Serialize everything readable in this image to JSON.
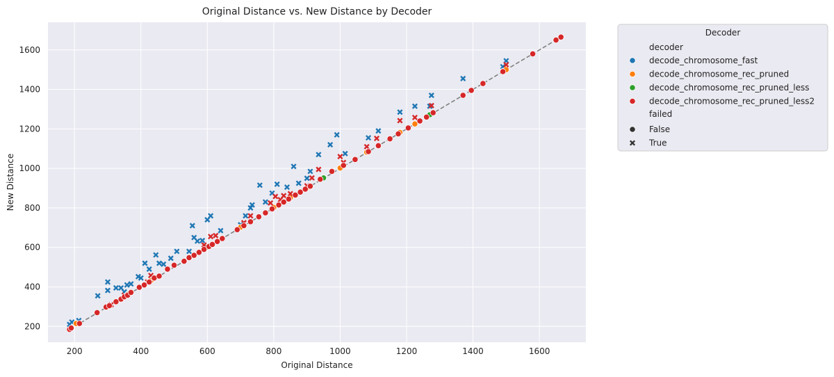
{
  "chart_data": {
    "type": "scatter",
    "title": "Original Distance vs. New Distance by Decoder",
    "xlabel": "Original Distance",
    "ylabel": "New Distance",
    "xlim": [
      120,
      1740
    ],
    "ylim": [
      120,
      1740
    ],
    "xticks": [
      200,
      400,
      600,
      800,
      1000,
      1200,
      1400,
      1600
    ],
    "yticks": [
      200,
      400,
      600,
      800,
      1000,
      1200,
      1400,
      1600
    ],
    "grid": true,
    "reference_line": {
      "x": [
        185,
        1665
      ],
      "y": [
        185,
        1665
      ],
      "style": "dashed",
      "color": "#808080"
    },
    "legend": {
      "title": "Decoder",
      "placement": "outside-right",
      "hue_heading": "decoder",
      "style_heading": "failed",
      "style_entries": [
        {
          "label": "False",
          "marker": "circle"
        },
        {
          "label": "True",
          "marker": "x"
        }
      ]
    },
    "series": [
      {
        "name": "decode_chromosome_fast",
        "color": "#1f77b4",
        "failed_points": [
          [
            185,
            210
          ],
          [
            192,
            222
          ],
          [
            213,
            230
          ],
          [
            270,
            355
          ],
          [
            300,
            382
          ],
          [
            300,
            425
          ],
          [
            325,
            395
          ],
          [
            340,
            395
          ],
          [
            350,
            375
          ],
          [
            358,
            410
          ],
          [
            370,
            415
          ],
          [
            392,
            452
          ],
          [
            400,
            445
          ],
          [
            412,
            520
          ],
          [
            425,
            490
          ],
          [
            445,
            562
          ],
          [
            455,
            520
          ],
          [
            468,
            515
          ],
          [
            490,
            545
          ],
          [
            508,
            580
          ],
          [
            545,
            580
          ],
          [
            555,
            710
          ],
          [
            560,
            650
          ],
          [
            570,
            632
          ],
          [
            585,
            635
          ],
          [
            600,
            740
          ],
          [
            610,
            760
          ],
          [
            640,
            685
          ],
          [
            700,
            715
          ],
          [
            715,
            760
          ],
          [
            730,
            800
          ],
          [
            735,
            815
          ],
          [
            758,
            915
          ],
          [
            775,
            830
          ],
          [
            795,
            875
          ],
          [
            810,
            920
          ],
          [
            840,
            905
          ],
          [
            860,
            1010
          ],
          [
            875,
            925
          ],
          [
            900,
            950
          ],
          [
            910,
            985
          ],
          [
            935,
            1070
          ],
          [
            970,
            1120
          ],
          [
            990,
            1170
          ],
          [
            1015,
            1075
          ],
          [
            1085,
            1155
          ],
          [
            1115,
            1190
          ],
          [
            1180,
            1285
          ],
          [
            1225,
            1315
          ],
          [
            1270,
            1315
          ],
          [
            1275,
            1370
          ],
          [
            1370,
            1455
          ],
          [
            1490,
            1515
          ],
          [
            1500,
            1545
          ]
        ],
        "passed_points": []
      },
      {
        "name": "decode_chromosome_rec_pruned",
        "color": "#ff7f0e",
        "failed_points": [],
        "passed_points": [
          [
            205,
            215
          ],
          [
            300,
            300
          ],
          [
            350,
            352
          ],
          [
            430,
            432
          ],
          [
            560,
            560
          ],
          [
            700,
            702
          ],
          [
            800,
            802
          ],
          [
            850,
            852
          ],
          [
            900,
            902
          ],
          [
            1000,
            1002
          ],
          [
            1080,
            1082
          ],
          [
            1180,
            1182
          ],
          [
            1225,
            1225
          ],
          [
            1490,
            1492
          ],
          [
            1500,
            1500
          ]
        ]
      },
      {
        "name": "decode_chromosome_rec_pruned_less",
        "color": "#2ca02c",
        "failed_points": [],
        "passed_points": [
          [
            360,
            362
          ],
          [
            600,
            602
          ],
          [
            950,
            952
          ],
          [
            1270,
            1272
          ]
        ]
      },
      {
        "name": "decode_chromosome_rec_pruned_less2",
        "color": "#d62728",
        "failed_points": [
          [
            310,
            310
          ],
          [
            350,
            358
          ],
          [
            420,
            425
          ],
          [
            430,
            458
          ],
          [
            480,
            490
          ],
          [
            590,
            612
          ],
          [
            610,
            655
          ],
          [
            625,
            660
          ],
          [
            710,
            725
          ],
          [
            730,
            760
          ],
          [
            790,
            825
          ],
          [
            805,
            858
          ],
          [
            820,
            842
          ],
          [
            830,
            862
          ],
          [
            850,
            872
          ],
          [
            900,
            912
          ],
          [
            915,
            952
          ],
          [
            935,
            995
          ],
          [
            1000,
            1060
          ],
          [
            1010,
            1030
          ],
          [
            1080,
            1110
          ],
          [
            1110,
            1152
          ],
          [
            1180,
            1242
          ],
          [
            1225,
            1258
          ],
          [
            1275,
            1318
          ],
          [
            1500,
            1525
          ]
        ],
        "passed_points": [
          [
            185,
            185
          ],
          [
            190,
            192
          ],
          [
            215,
            215
          ],
          [
            268,
            270
          ],
          [
            295,
            298
          ],
          [
            305,
            305
          ],
          [
            325,
            325
          ],
          [
            340,
            338
          ],
          [
            350,
            350
          ],
          [
            360,
            358
          ],
          [
            370,
            372
          ],
          [
            395,
            398
          ],
          [
            410,
            410
          ],
          [
            425,
            425
          ],
          [
            440,
            445
          ],
          [
            455,
            455
          ],
          [
            480,
            490
          ],
          [
            500,
            510
          ],
          [
            530,
            530
          ],
          [
            545,
            548
          ],
          [
            560,
            560
          ],
          [
            575,
            575
          ],
          [
            590,
            590
          ],
          [
            605,
            605
          ],
          [
            615,
            615
          ],
          [
            630,
            630
          ],
          [
            645,
            645
          ],
          [
            690,
            690
          ],
          [
            710,
            710
          ],
          [
            730,
            730
          ],
          [
            755,
            755
          ],
          [
            775,
            775
          ],
          [
            795,
            795
          ],
          [
            815,
            815
          ],
          [
            830,
            830
          ],
          [
            845,
            845
          ],
          [
            865,
            865
          ],
          [
            880,
            880
          ],
          [
            895,
            895
          ],
          [
            910,
            910
          ],
          [
            940,
            945
          ],
          [
            975,
            985
          ],
          [
            1010,
            1015
          ],
          [
            1045,
            1045
          ],
          [
            1085,
            1085
          ],
          [
            1115,
            1115
          ],
          [
            1150,
            1150
          ],
          [
            1175,
            1175
          ],
          [
            1205,
            1205
          ],
          [
            1240,
            1240
          ],
          [
            1260,
            1260
          ],
          [
            1280,
            1282
          ],
          [
            1370,
            1370
          ],
          [
            1395,
            1395
          ],
          [
            1430,
            1430
          ],
          [
            1490,
            1490
          ],
          [
            1580,
            1580
          ],
          [
            1650,
            1650
          ],
          [
            1665,
            1665
          ]
        ]
      }
    ]
  }
}
